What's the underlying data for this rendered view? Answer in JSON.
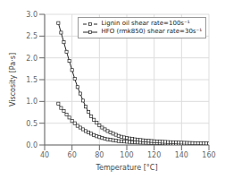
{
  "chart_data": {
    "type": "line",
    "xlabel": "Temperature [°C]",
    "ylabel": "Viscosity [Pa·s]",
    "xlim": [
      40,
      160
    ],
    "ylim": [
      0,
      3
    ],
    "xticks": [
      40,
      60,
      80,
      100,
      120,
      140,
      160
    ],
    "yticks": [
      {
        "value": 0,
        "label": "0.0"
      },
      0.5,
      {
        "value": 1.0,
        "label": "1.0"
      },
      1.5,
      {
        "value": 2.0,
        "label": "2.0"
      },
      2.5,
      {
        "value": 3.0,
        "label": "3.0"
      }
    ],
    "grid": true,
    "legend": "upper right",
    "x": [
      50,
      52,
      54,
      56,
      58,
      60,
      62,
      64,
      66,
      68,
      70,
      72,
      74,
      76,
      78,
      80,
      82,
      84,
      86,
      88,
      90,
      92,
      94,
      96,
      98,
      100,
      102,
      104,
      106,
      108,
      110,
      112,
      114,
      116,
      118,
      120,
      122,
      124,
      126,
      128,
      130,
      132,
      134,
      136,
      138,
      140,
      142,
      144,
      146,
      148,
      150,
      152,
      154,
      156,
      158,
      160
    ],
    "series": [
      {
        "name": "Lignin oil shear rate=100s⁻¹",
        "color": "#222222",
        "marker": "square",
        "line_style": "dashed",
        "values": [
          0.95,
          0.85,
          0.78,
          0.7,
          0.63,
          0.55,
          0.5,
          0.44,
          0.4,
          0.36,
          0.32,
          0.29,
          0.26,
          0.23,
          0.2,
          0.18,
          0.16,
          0.145,
          0.13,
          0.12,
          0.11,
          0.1,
          0.09,
          0.085,
          0.08,
          0.075,
          0.07,
          0.065,
          0.062,
          0.058,
          0.055,
          0.052,
          0.05,
          0.048,
          0.046,
          0.044,
          0.042,
          0.04,
          0.038,
          0.036,
          0.035,
          0.034,
          0.032,
          0.031,
          0.03,
          0.028,
          0.027,
          0.026,
          0.025,
          0.024,
          0.022,
          0.021,
          0.02,
          0.019,
          0.018,
          0.017
        ]
      },
      {
        "name": "HFO (rmk850) shear rate=30s⁻¹",
        "color": "#222222",
        "marker": "square",
        "line_style": "solid",
        "values": [
          2.8,
          2.58,
          2.36,
          2.14,
          1.93,
          1.72,
          1.52,
          1.33,
          1.18,
          1.02,
          0.88,
          0.76,
          0.66,
          0.58,
          0.51,
          0.45,
          0.4,
          0.36,
          0.32,
          0.29,
          0.26,
          0.235,
          0.21,
          0.19,
          0.175,
          0.162,
          0.15,
          0.14,
          0.13,
          0.122,
          0.115,
          0.108,
          0.102,
          0.097,
          0.092,
          0.087,
          0.083,
          0.079,
          0.075,
          0.072,
          0.068,
          0.065,
          0.062,
          0.059,
          0.056,
          0.054,
          0.051,
          0.049,
          0.047,
          0.045,
          0.043,
          0.041,
          0.039,
          0.037,
          0.036,
          0.034
        ]
      }
    ]
  }
}
